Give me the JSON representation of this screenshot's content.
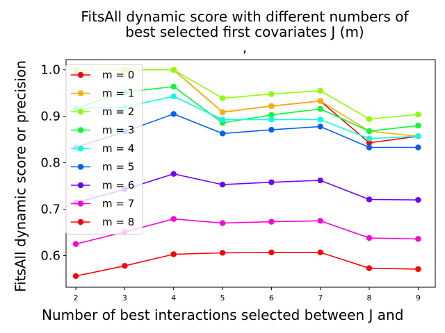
{
  "chart_data": {
    "type": "line",
    "title_lines": [
      "FitsAll dynamic score with different numbers of",
      "best selected first covariates J (m)",
      ","
    ],
    "xlabel": "Number of best interactions selected between J and",
    "ylabel": "FitsAll dynamic score or precision",
    "x": [
      2,
      3,
      4,
      5,
      6,
      7,
      8,
      9
    ],
    "xlim": [
      1.8,
      9.35
    ],
    "ylim": [
      0.532,
      1.022
    ],
    "yticks": [
      0.6,
      0.7,
      0.8,
      0.9,
      1.0
    ],
    "yticklabels": [
      "0.6",
      "0.7",
      "0.8",
      "0.9",
      "1.0"
    ],
    "grid": false,
    "legend_position": "upper-left",
    "series": [
      {
        "name": "m = 0",
        "color": "#ff0000",
        "values": [
          1.0,
          1.0,
          1.0,
          0.909,
          0.922,
          0.933,
          0.843,
          0.857
        ]
      },
      {
        "name": "m = 1",
        "color": "#ffb000",
        "values": [
          1.0,
          1.0,
          1.0,
          0.909,
          0.922,
          0.933,
          0.868,
          0.857
        ]
      },
      {
        "name": "m = 2",
        "color": "#8cff00",
        "values": [
          1.0,
          1.0,
          1.0,
          0.939,
          0.948,
          0.955,
          0.894,
          0.904
        ]
      },
      {
        "name": "m = 3",
        "color": "#00ff30",
        "values": [
          0.917,
          0.952,
          0.964,
          0.886,
          0.903,
          0.916,
          0.868,
          0.88
        ]
      },
      {
        "name": "m = 4",
        "color": "#00ffe6",
        "values": [
          0.917,
          0.92,
          0.943,
          0.893,
          0.893,
          0.893,
          0.852,
          0.857
        ]
      },
      {
        "name": "m = 5",
        "color": "#0060ff",
        "values": [
          0.833,
          0.867,
          0.905,
          0.863,
          0.871,
          0.878,
          0.833,
          0.833
        ]
      },
      {
        "name": "m = 6",
        "color": "#7000ff",
        "values": [
          0.714,
          0.743,
          0.776,
          0.753,
          0.758,
          0.762,
          0.721,
          0.72
        ]
      },
      {
        "name": "m = 7",
        "color": "#ff00d8",
        "values": [
          0.625,
          0.651,
          0.679,
          0.67,
          0.673,
          0.675,
          0.638,
          0.636
        ]
      },
      {
        "name": "m = 8",
        "color": "#ff0000",
        "values": [
          0.556,
          0.578,
          0.603,
          0.606,
          0.607,
          0.607,
          0.573,
          0.571
        ]
      }
    ]
  }
}
